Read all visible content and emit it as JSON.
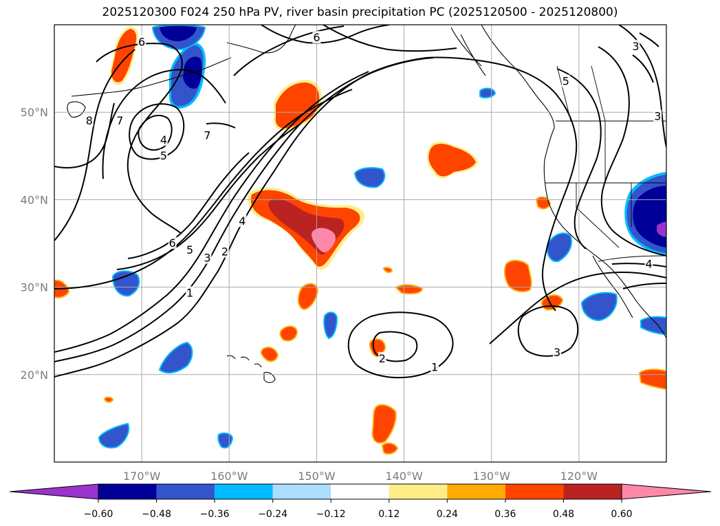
{
  "title": "2025120300 F024 250 hPa PV, river basin precipitation PC (2025120500 - 2025120800)",
  "map": {
    "lon_ticks": [
      {
        "lon": -170,
        "label": "170°W"
      },
      {
        "lon": -160,
        "label": "160°W"
      },
      {
        "lon": -150,
        "label": "150°W"
      },
      {
        "lon": -140,
        "label": "140°W"
      },
      {
        "lon": -130,
        "label": "130°W"
      },
      {
        "lon": -120,
        "label": "120°W"
      }
    ],
    "lat_ticks": [
      {
        "lat": 20,
        "label": "20°N"
      },
      {
        "lat": 30,
        "label": "30°N"
      },
      {
        "lat": 40,
        "label": "40°N"
      },
      {
        "lat": 50,
        "label": "50°N"
      }
    ],
    "pv_contour_labels": [
      "1",
      "2",
      "3",
      "4",
      "5",
      "6",
      "7",
      "8"
    ],
    "pv_label_annotations": [
      {
        "text": "8",
        "lon": -176.0,
        "lat": 49.0
      },
      {
        "text": "7",
        "lon": -172.5,
        "lat": 49.0
      },
      {
        "text": "4",
        "lon": -167.5,
        "lat": 46.8
      },
      {
        "text": "5",
        "lon": -167.5,
        "lat": 45.0
      },
      {
        "text": "7",
        "lon": -162.5,
        "lat": 47.3
      },
      {
        "text": "6",
        "lon": -170.0,
        "lat": 58.0
      },
      {
        "text": "6",
        "lon": -166.5,
        "lat": 35.0
      },
      {
        "text": "5",
        "lon": -164.5,
        "lat": 34.2
      },
      {
        "text": "3",
        "lon": -162.5,
        "lat": 33.3
      },
      {
        "text": "2",
        "lon": -160.5,
        "lat": 34.0
      },
      {
        "text": "4",
        "lon": -158.5,
        "lat": 37.5
      },
      {
        "text": "1",
        "lon": -164.5,
        "lat": 29.3
      },
      {
        "text": "2",
        "lon": -142.5,
        "lat": 21.8
      },
      {
        "text": "1",
        "lon": -136.5,
        "lat": 20.8
      },
      {
        "text": "3",
        "lon": -122.5,
        "lat": 22.5
      },
      {
        "text": "5",
        "lon": -121.5,
        "lat": 53.5
      },
      {
        "text": "3",
        "lon": -113.5,
        "lat": 57.5
      },
      {
        "text": "3",
        "lon": -111.0,
        "lat": 49.5
      },
      {
        "text": "4",
        "lon": -112.0,
        "lat": 32.6
      },
      {
        "text": "6",
        "lon": -150.0,
        "lat": 58.5
      }
    ]
  },
  "colorbar": {
    "tick_labels": [
      "−0.60",
      "−0.48",
      "−0.36",
      "−0.24",
      "−0.12",
      "0.12",
      "0.24",
      "0.36",
      "0.48",
      "0.60"
    ],
    "colors": [
      "#9933cc",
      "#000099",
      "#3355cc",
      "#00bbff",
      "#aaddff",
      "#ffffff",
      "#ffee88",
      "#ffaa00",
      "#ff4400",
      "#bb2222",
      "#ff88aa"
    ],
    "extend": "both"
  },
  "chart_data": {
    "type": "map",
    "title": "2025120300 F024 250 hPa PV, river basin precipitation PC (2025120500 - 2025120800)",
    "lon_range": [
      -180,
      -110
    ],
    "lat_range": [
      10,
      60
    ],
    "fields": [
      {
        "name": "250 hPa PV",
        "style": "black contours",
        "levels": [
          1,
          2,
          3,
          4,
          5,
          6,
          7,
          8
        ]
      },
      {
        "name": "river basin precipitation PC",
        "style": "filled",
        "levels": [
          -0.6,
          -0.48,
          -0.36,
          -0.24,
          -0.12,
          0.12,
          0.24,
          0.36,
          0.48,
          0.6
        ]
      }
    ],
    "precip_regions": [
      {
        "lon": -146,
        "lat": 36,
        "peak": 0.6,
        "sign": "positive"
      },
      {
        "lon": -152,
        "lat": 51,
        "peak": 0.42,
        "sign": "positive"
      },
      {
        "lon": -134,
        "lat": 44,
        "peak": 0.42,
        "sign": "positive"
      },
      {
        "lon": -173,
        "lat": 56,
        "peak": 0.4,
        "sign": "positive"
      },
      {
        "lon": -114,
        "lat": 37,
        "peak": -0.65,
        "sign": "negative"
      },
      {
        "lon": -164,
        "lat": 55,
        "peak": -0.5,
        "sign": "negative"
      },
      {
        "lon": -122,
        "lat": 35,
        "peak": -0.5,
        "sign": "negative"
      },
      {
        "lon": -145,
        "lat": 42,
        "peak": -0.38,
        "sign": "negative"
      },
      {
        "lon": -118,
        "lat": 26,
        "peak": -0.4,
        "sign": "negative"
      }
    ]
  }
}
